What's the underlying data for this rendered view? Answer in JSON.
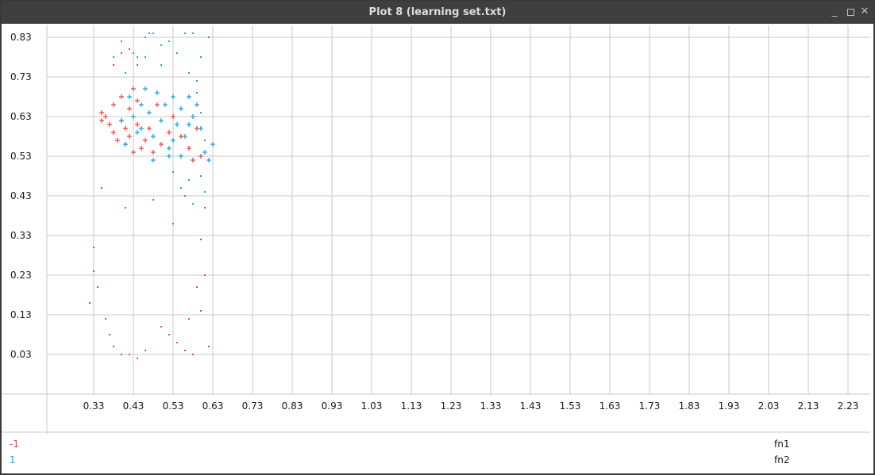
{
  "window": {
    "title": "Plot 8 (learning set.txt)"
  },
  "legend": {
    "classes": [
      {
        "label": "-1",
        "color": "#e8483b"
      },
      {
        "label": "1",
        "color": "#1ea0e0"
      }
    ],
    "features": [
      "fn1",
      "fn2"
    ]
  },
  "colors": {
    "class_neg": "#e8483b",
    "class_pos": "#1ea0e0",
    "grid": "#c8c8c8",
    "text": "#1a1a1a"
  },
  "chart_data": {
    "type": "scatter",
    "title": "",
    "xlabel": "",
    "ylabel": "",
    "xlim": [
      0.23,
      2.28
    ],
    "ylim": [
      -0.07,
      0.86
    ],
    "x_ticks": [
      "0.33",
      "0.43",
      "0.53",
      "0.63",
      "0.73",
      "0.83",
      "0.93",
      "1.03",
      "1.13",
      "1.23",
      "1.33",
      "1.43",
      "1.53",
      "1.63",
      "1.73",
      "1.83",
      "1.93",
      "2.03",
      "2.13",
      "2.23"
    ],
    "y_ticks": [
      "0.83",
      "0.73",
      "0.63",
      "0.53",
      "0.43",
      "0.33",
      "0.23",
      "0.13",
      "0.03"
    ],
    "grid": true,
    "series": [
      {
        "name": "-1",
        "color": "#e8483b",
        "dot_points": [
          [
            0.32,
            0.16
          ],
          [
            0.33,
            0.24
          ],
          [
            0.33,
            0.3
          ],
          [
            0.34,
            0.2
          ],
          [
            0.35,
            0.45
          ],
          [
            0.36,
            0.12
          ],
          [
            0.37,
            0.08
          ],
          [
            0.38,
            0.05
          ],
          [
            0.4,
            0.03
          ],
          [
            0.41,
            0.4
          ],
          [
            0.42,
            0.03
          ],
          [
            0.44,
            0.02
          ],
          [
            0.46,
            0.04
          ],
          [
            0.48,
            0.42
          ],
          [
            0.5,
            0.1
          ],
          [
            0.52,
            0.08
          ],
          [
            0.53,
            0.36
          ],
          [
            0.54,
            0.06
          ],
          [
            0.56,
            0.04
          ],
          [
            0.57,
            0.12
          ],
          [
            0.58,
            0.03
          ],
          [
            0.59,
            0.2
          ],
          [
            0.6,
            0.14
          ],
          [
            0.61,
            0.23
          ],
          [
            0.62,
            0.05
          ],
          [
            0.6,
            0.32
          ],
          [
            0.38,
            0.76
          ],
          [
            0.4,
            0.79
          ],
          [
            0.42,
            0.8
          ],
          [
            0.44,
            0.76
          ]
        ],
        "plus_points": [
          [
            0.35,
            0.64
          ],
          [
            0.35,
            0.62
          ],
          [
            0.36,
            0.63
          ],
          [
            0.37,
            0.61
          ],
          [
            0.38,
            0.66
          ],
          [
            0.38,
            0.59
          ],
          [
            0.39,
            0.57
          ],
          [
            0.4,
            0.68
          ],
          [
            0.4,
            0.62
          ],
          [
            0.41,
            0.6
          ],
          [
            0.41,
            0.56
          ],
          [
            0.42,
            0.65
          ],
          [
            0.42,
            0.58
          ],
          [
            0.43,
            0.7
          ],
          [
            0.43,
            0.54
          ],
          [
            0.44,
            0.67
          ],
          [
            0.44,
            0.61
          ],
          [
            0.45,
            0.55
          ],
          [
            0.46,
            0.57
          ],
          [
            0.48,
            0.54
          ],
          [
            0.5,
            0.56
          ],
          [
            0.52,
            0.59
          ],
          [
            0.55,
            0.58
          ],
          [
            0.57,
            0.55
          ],
          [
            0.58,
            0.52
          ],
          [
            0.59,
            0.6
          ],
          [
            0.6,
            0.53
          ],
          [
            0.53,
            0.63
          ],
          [
            0.47,
            0.6
          ],
          [
            0.49,
            0.66
          ]
        ]
      },
      {
        "name": "1",
        "color": "#1ea0e0",
        "dot_points": [
          [
            0.38,
            0.78
          ],
          [
            0.4,
            0.82
          ],
          [
            0.41,
            0.74
          ],
          [
            0.43,
            0.79
          ],
          [
            0.46,
            0.83
          ],
          [
            0.47,
            0.84
          ],
          [
            0.48,
            0.84
          ],
          [
            0.5,
            0.81
          ],
          [
            0.52,
            0.82
          ],
          [
            0.54,
            0.79
          ],
          [
            0.56,
            0.84
          ],
          [
            0.58,
            0.84
          ],
          [
            0.6,
            0.78
          ],
          [
            0.62,
            0.83
          ],
          [
            0.61,
            0.44
          ],
          [
            0.61,
            0.4
          ],
          [
            0.57,
            0.47
          ],
          [
            0.55,
            0.45
          ],
          [
            0.56,
            0.43
          ],
          [
            0.58,
            0.41
          ],
          [
            0.53,
            0.49
          ],
          [
            0.59,
            0.72
          ],
          [
            0.59,
            0.69
          ],
          [
            0.6,
            0.64
          ],
          [
            0.61,
            0.57
          ],
          [
            0.6,
            0.48
          ],
          [
            0.44,
            0.78
          ],
          [
            0.46,
            0.78
          ],
          [
            0.5,
            0.76
          ],
          [
            0.57,
            0.74
          ]
        ],
        "plus_points": [
          [
            0.4,
            0.62
          ],
          [
            0.41,
            0.56
          ],
          [
            0.42,
            0.68
          ],
          [
            0.43,
            0.63
          ],
          [
            0.44,
            0.59
          ],
          [
            0.45,
            0.66
          ],
          [
            0.46,
            0.7
          ],
          [
            0.47,
            0.64
          ],
          [
            0.48,
            0.58
          ],
          [
            0.49,
            0.69
          ],
          [
            0.5,
            0.62
          ],
          [
            0.51,
            0.66
          ],
          [
            0.52,
            0.55
          ],
          [
            0.53,
            0.68
          ],
          [
            0.54,
            0.61
          ],
          [
            0.55,
            0.65
          ],
          [
            0.56,
            0.58
          ],
          [
            0.57,
            0.68
          ],
          [
            0.58,
            0.63
          ],
          [
            0.59,
            0.66
          ],
          [
            0.6,
            0.6
          ],
          [
            0.61,
            0.54
          ],
          [
            0.62,
            0.52
          ],
          [
            0.63,
            0.56
          ],
          [
            0.52,
            0.53
          ],
          [
            0.48,
            0.52
          ],
          [
            0.55,
            0.53
          ],
          [
            0.45,
            0.6
          ],
          [
            0.53,
            0.57
          ],
          [
            0.57,
            0.61
          ]
        ]
      }
    ]
  }
}
